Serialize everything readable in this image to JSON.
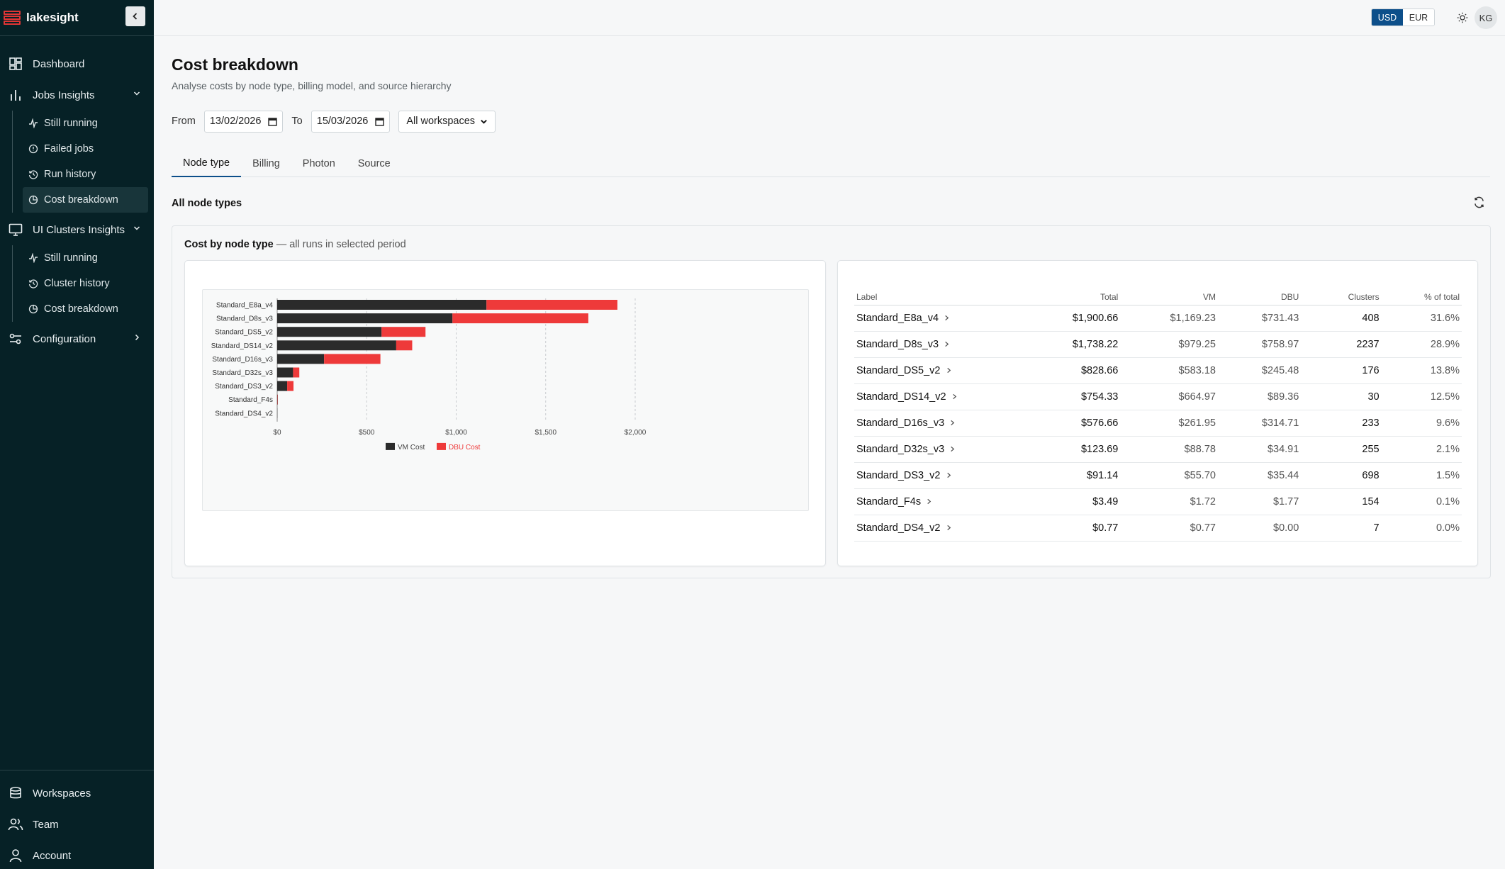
{
  "app": {
    "name": "lakesight"
  },
  "sidebar": {
    "items": [
      {
        "label": "Dashboard",
        "icon": "dashboard-icon"
      },
      {
        "label": "Jobs Insights",
        "icon": "bar-chart-icon",
        "expanded": true,
        "children": [
          {
            "label": "Still running",
            "icon": "activity-icon"
          },
          {
            "label": "Failed jobs",
            "icon": "alert-circle-icon"
          },
          {
            "label": "Run history",
            "icon": "history-icon"
          },
          {
            "label": "Cost breakdown",
            "icon": "pie-chart-icon",
            "active": true
          }
        ]
      },
      {
        "label": "UI Clusters Insights",
        "icon": "monitor-icon",
        "expanded": true,
        "children": [
          {
            "label": "Still running",
            "icon": "activity-icon"
          },
          {
            "label": "Cluster history",
            "icon": "history-icon"
          },
          {
            "label": "Cost breakdown",
            "icon": "pie-chart-icon"
          }
        ]
      },
      {
        "label": "Configuration",
        "icon": "sliders-icon"
      }
    ],
    "bottom": [
      {
        "label": "Workspaces",
        "icon": "database-icon"
      },
      {
        "label": "Team",
        "icon": "users-icon"
      },
      {
        "label": "Account",
        "icon": "user-icon"
      }
    ]
  },
  "topbar": {
    "currency_options": [
      "USD",
      "EUR"
    ],
    "currency_selected": "USD",
    "avatar_initials": "KG"
  },
  "page": {
    "title": "Cost breakdown",
    "subtitle": "Analyse costs by node type, billing model, and source hierarchy",
    "filters": {
      "from_label": "From",
      "from_value": "13/02/2026",
      "to_label": "To",
      "to_value": "15/03/2026",
      "workspace_value": "All workspaces"
    },
    "tabs": [
      "Node type",
      "Billing",
      "Photon",
      "Source"
    ],
    "active_tab": "Node type",
    "section_title": "All node types",
    "card_title_bold": "Cost by node type",
    "card_title_rest": " — all runs in selected period"
  },
  "colors": {
    "vm": "#2b2b2b",
    "dbu": "#ee3a3a",
    "accent": "#0d4f8a",
    "sidebar_bg": "#062126"
  },
  "chart_data": {
    "type": "bar",
    "orientation": "horizontal",
    "stacked": true,
    "categories": [
      "Standard_E8a_v4",
      "Standard_D8s_v3",
      "Standard_DS5_v2",
      "Standard_DS14_v2",
      "Standard_D16s_v3",
      "Standard_D32s_v3",
      "Standard_DS3_v2",
      "Standard_F4s",
      "Standard_DS4_v2"
    ],
    "series": [
      {
        "name": "VM Cost",
        "values": [
          1169.23,
          979.25,
          583.18,
          664.97,
          261.95,
          88.78,
          55.7,
          1.72,
          0.77
        ]
      },
      {
        "name": "DBU Cost",
        "values": [
          731.43,
          758.97,
          245.48,
          89.36,
          314.71,
          34.91,
          35.44,
          1.77,
          0.0
        ]
      }
    ],
    "xlim": [
      0,
      2000
    ],
    "xticks": [
      "$0",
      "$500",
      "$1,000",
      "$1,500",
      "$2,000"
    ],
    "xtick_values": [
      0,
      500,
      1000,
      1500,
      2000
    ],
    "grid": "vertical dashed",
    "legend": "bottom"
  },
  "table": {
    "columns": [
      "Label",
      "Total",
      "VM",
      "DBU",
      "Clusters",
      "% of total"
    ],
    "rows": [
      [
        "Standard_E8a_v4",
        "$1,900.66",
        "$1,169.23",
        "$731.43",
        "408",
        "31.6%"
      ],
      [
        "Standard_D8s_v3",
        "$1,738.22",
        "$979.25",
        "$758.97",
        "2237",
        "28.9%"
      ],
      [
        "Standard_DS5_v2",
        "$828.66",
        "$583.18",
        "$245.48",
        "176",
        "13.8%"
      ],
      [
        "Standard_DS14_v2",
        "$754.33",
        "$664.97",
        "$89.36",
        "30",
        "12.5%"
      ],
      [
        "Standard_D16s_v3",
        "$576.66",
        "$261.95",
        "$314.71",
        "233",
        "9.6%"
      ],
      [
        "Standard_D32s_v3",
        "$123.69",
        "$88.78",
        "$34.91",
        "255",
        "2.1%"
      ],
      [
        "Standard_DS3_v2",
        "$91.14",
        "$55.70",
        "$35.44",
        "698",
        "1.5%"
      ],
      [
        "Standard_F4s",
        "$3.49",
        "$1.72",
        "$1.77",
        "154",
        "0.1%"
      ],
      [
        "Standard_DS4_v2",
        "$0.77",
        "$0.77",
        "$0.00",
        "7",
        "0.0%"
      ]
    ]
  }
}
